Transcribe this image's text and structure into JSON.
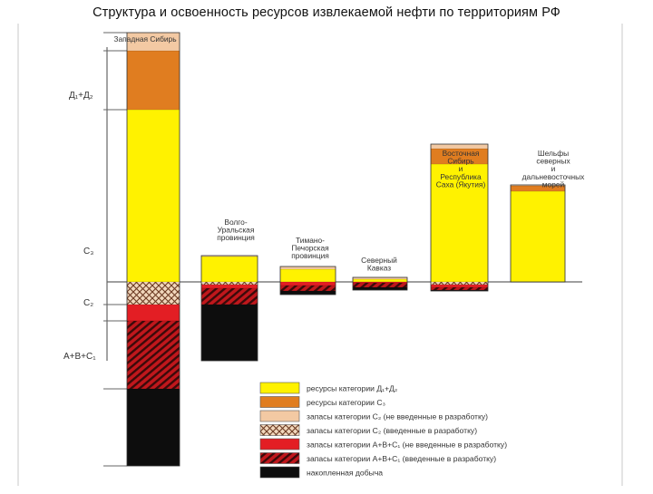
{
  "title": "Структура и освоенность ресурсов извлекаемой нефти по территориям РФ",
  "colors": {
    "d1d2": "#FFF200",
    "c3": "#E07D20",
    "c2_ne": "#F3C9A3",
    "c2_vv": "#EDD3B8",
    "abc1_ne": "#E31E24",
    "abc1_vv": "#B8171C",
    "nakop": "#0D0D0D",
    "axis": "#666666"
  },
  "chart_data": {
    "type": "bar",
    "stacked": "diverging",
    "baseline_label": "",
    "categories": [
      "Западная Сибирь",
      "Волго-Уральская провинция",
      "Тимано-Печорская провинция",
      "Северный Кавказ",
      "Восточная Сибирь и Республика Саха (Якутия)",
      "Шельфы северных и дальневосточных морей"
    ],
    "category_label_lines": [
      [
        "Западная Сибирь"
      ],
      [
        "Волго-",
        "Уральская",
        "провинция"
      ],
      [
        "Тимано-",
        "Печорская",
        "провинция"
      ],
      [
        "Северный",
        "Кавказ"
      ],
      [
        "Восточная",
        "Сибирь",
        "и",
        "Республика",
        "Саха (Якутия)"
      ],
      [
        "Шельфы",
        "северных",
        "и",
        "дальневосточных",
        "морей"
      ]
    ],
    "series": [
      {
        "key": "d1d2",
        "name": "ресурсы категории Д₁+Д₂",
        "side": "above",
        "pattern": "none",
        "values": [
          190,
          28,
          14,
          3,
          130,
          100
        ]
      },
      {
        "key": "c3",
        "name": "ресурсы категории С₃",
        "side": "above",
        "pattern": "none",
        "values": [
          65,
          0,
          0,
          0,
          17,
          6
        ]
      },
      {
        "key": "c2_ne",
        "name": "запасы категории С₂ (не введенные в разработку)",
        "side": "above",
        "pattern": "none",
        "values": [
          20,
          1,
          3,
          2,
          5,
          1
        ]
      },
      {
        "key": "c2_vv",
        "name": "запасы категории С₂ (введенные в разработку)",
        "side": "below",
        "pattern": "cross",
        "values": [
          25,
          3,
          0,
          0,
          3,
          0
        ]
      },
      {
        "key": "abc1_ne",
        "name": "запасы категории А+В+С₁ (не введенные в разработку)",
        "side": "below",
        "pattern": "none",
        "values": [
          18,
          4,
          4,
          1,
          3,
          0
        ]
      },
      {
        "key": "abc1_vv",
        "name": "запасы категории А+В+С₁ (введенные в разработку)",
        "side": "below",
        "pattern": "hatch",
        "values": [
          75,
          18,
          6,
          5,
          3,
          0
        ]
      },
      {
        "key": "nakop",
        "name": "накопленная добыча",
        "side": "below",
        "pattern": "none",
        "values": [
          85,
          62,
          4,
          3,
          1,
          0
        ]
      }
    ],
    "axis_annotations": [
      {
        "text": "Д₁+Д₂",
        "position": "top segment"
      },
      {
        "text": "С₃",
        "position": "second segment"
      },
      {
        "text": "С₂",
        "position": "at baseline"
      },
      {
        "text": "А+В+С₁",
        "position": "below baseline"
      }
    ],
    "grid": false,
    "legend_position": "bottom-right"
  }
}
